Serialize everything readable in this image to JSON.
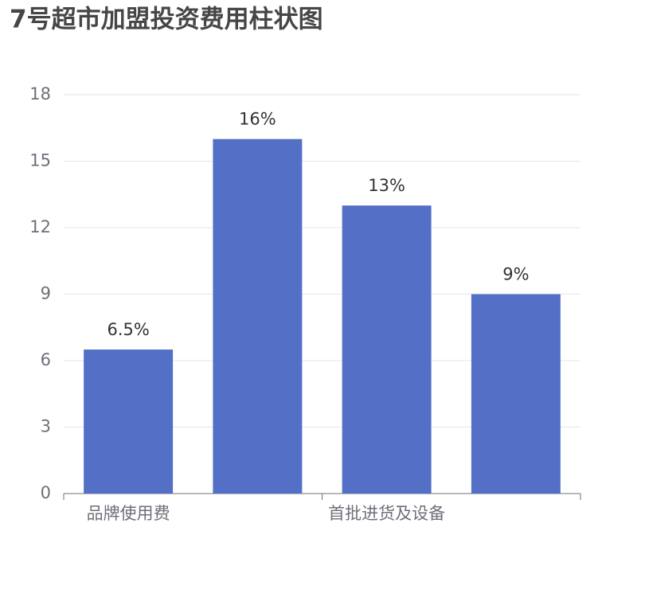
{
  "chart_data": {
    "type": "bar",
    "title": "7号超市加盟投资费用柱状图",
    "categories": [
      "品牌使用费",
      null,
      "首批进货及设备",
      null
    ],
    "values": [
      6.5,
      16,
      13,
      9
    ],
    "value_labels": [
      "6.5%",
      "16%",
      "13%",
      "9%"
    ],
    "color": "#5470c6",
    "ylim": [
      0,
      18
    ],
    "yticks": [
      0,
      3,
      6,
      9,
      12,
      15,
      18
    ],
    "grid": true
  }
}
